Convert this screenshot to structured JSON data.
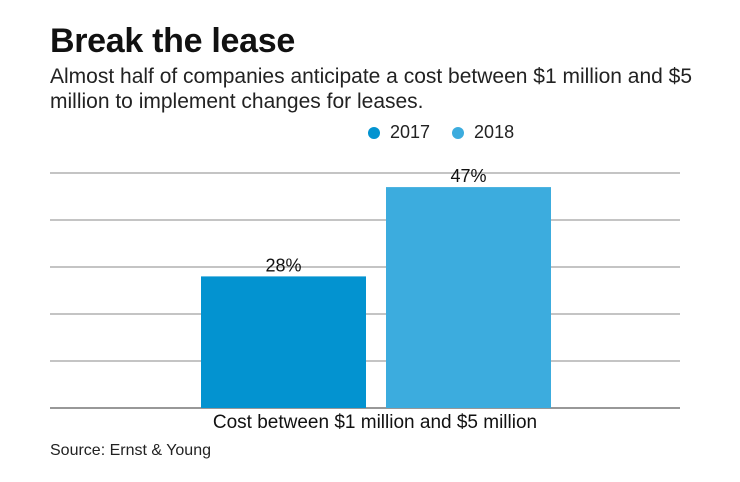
{
  "header": {
    "title": "Break the lease",
    "subtitle": "Almost half of companies anticipate a cost between $1 million and $5 million to implement changes for leases."
  },
  "source": "Source: Ernst & Young",
  "chart_data": {
    "type": "bar",
    "title": "Break the lease",
    "subtitle": "Almost half of companies anticipate a cost between $1 million and $5 million to implement changes for leases.",
    "categories": [
      "Cost between $1 million and $5 million"
    ],
    "series": [
      {
        "name": "2017",
        "values": [
          28
        ],
        "labels": [
          "28%"
        ],
        "color": "#0393d0"
      },
      {
        "name": "2018",
        "values": [
          47
        ],
        "labels": [
          "47%"
        ],
        "color": "#3cacde"
      }
    ],
    "xlabel": "",
    "ylabel": "",
    "ylim": [
      0,
      50
    ],
    "yticks": [
      0,
      10,
      20,
      30,
      40,
      50
    ],
    "ytick_labels_visible": false,
    "grid": true,
    "legend": "top-center",
    "unit": "%"
  }
}
